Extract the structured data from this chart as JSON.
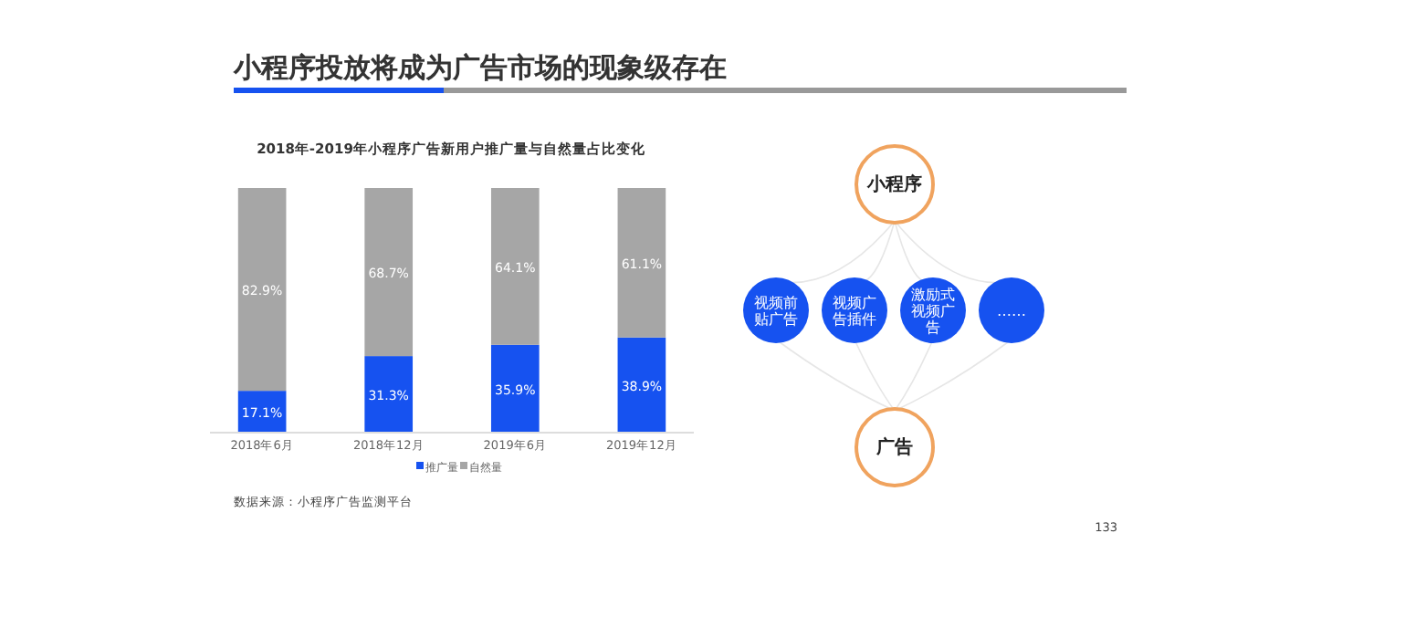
{
  "chart_data": [
    {
      "type": "bar",
      "title": "2018年-2019年小程序广告新用户推广量与自然量占比变化",
      "categories": [
        "2018年6月",
        "2018年12月",
        "2019年6月",
        "2019年12月"
      ],
      "stacked": true,
      "legend": "bottom",
      "series": [
        {
          "name": "推广量",
          "color": "#1652f0",
          "values": [
            17.1,
            31.3,
            35.9,
            38.9
          ],
          "value_labels": [
            "17.1%",
            "31.3%",
            "35.9%",
            "38.9%"
          ]
        },
        {
          "name": "自然量",
          "color": "#a6a6a6",
          "values": [
            82.9,
            68.7,
            64.1,
            61.1
          ],
          "value_labels": [
            "82.9%",
            "68.7%",
            "64.1%",
            "61.1%"
          ]
        }
      ],
      "annotations": [
        "数据来源：小程序广告监测平台"
      ]
    },
    {
      "type": "other",
      "title": "小程序投放将成为广告市场的现象级存在",
      "annotations": [
        "小程序",
        "视频前贴广告",
        "视频广告插件",
        "激励式视频广告",
        "……",
        "广告",
        "133"
      ]
    }
  ]
}
